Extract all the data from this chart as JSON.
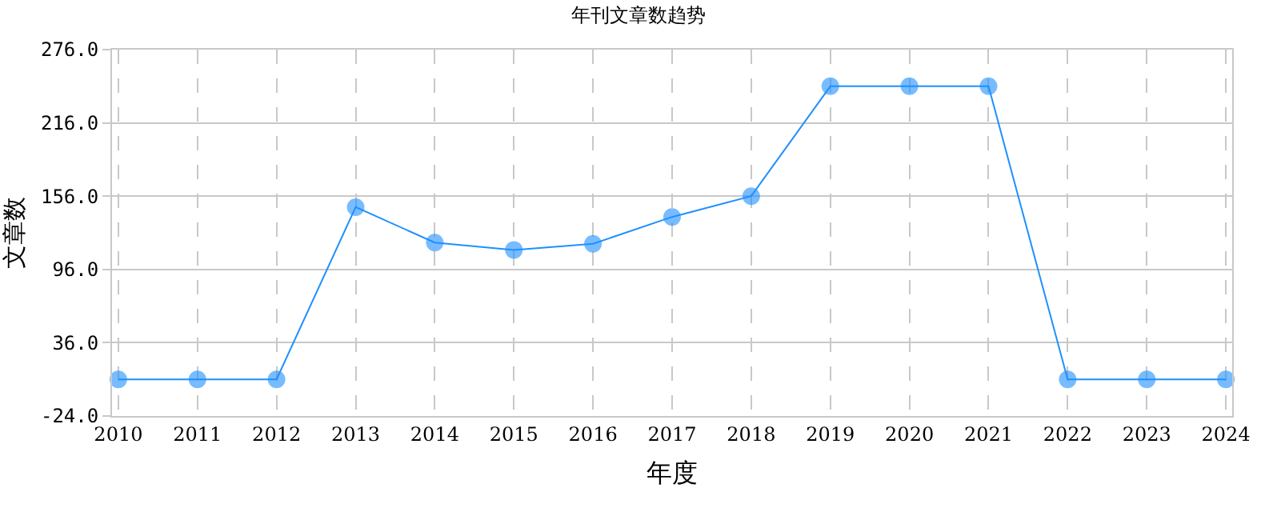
{
  "chart_data": {
    "type": "line",
    "title": "年刊文章数趋势",
    "xlabel": "年度",
    "ylabel": "文章数",
    "categories": [
      "2010",
      "2011",
      "2012",
      "2013",
      "2014",
      "2015",
      "2016",
      "2017",
      "2018",
      "2019",
      "2020",
      "2021",
      "2022",
      "2023",
      "2024"
    ],
    "series": [
      {
        "color": "#1e90ff",
        "values": [
          6,
          6,
          6,
          147,
          118,
          112,
          117,
          139,
          156,
          246,
          246,
          246,
          6,
          6,
          6
        ]
      }
    ],
    "ylim": [
      -24,
      276
    ],
    "yticks": [
      {
        "value": -24,
        "label": "-24.0"
      },
      {
        "value": 36,
        "label": "36.0"
      },
      {
        "value": 96,
        "label": "96.0"
      },
      {
        "value": 156,
        "label": "156.0"
      },
      {
        "value": 216,
        "label": "216.0"
      },
      {
        "value": 276,
        "label": "276.0"
      }
    ],
    "grid": true,
    "marker": "circle"
  }
}
